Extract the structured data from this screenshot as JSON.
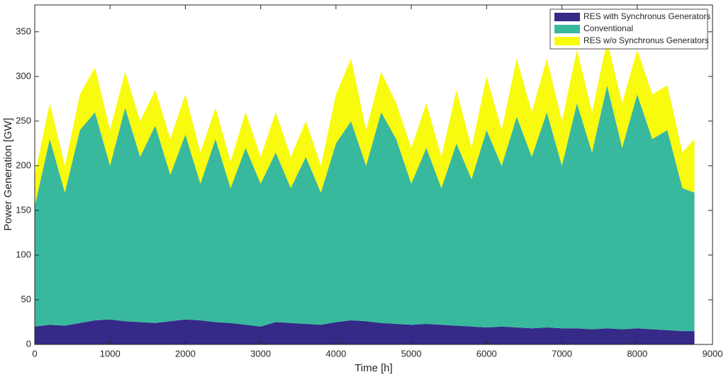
{
  "chart_data": {
    "type": "stacked_area",
    "x_label": "Time [h]",
    "y_label": "Power Generation [GW]",
    "x": [
      0,
      200,
      400,
      600,
      800,
      1000,
      1200,
      1400,
      1600,
      1800,
      2000,
      2200,
      2400,
      2600,
      2800,
      3000,
      3200,
      3400,
      3600,
      3800,
      4000,
      4200,
      4400,
      4600,
      4800,
      5000,
      5200,
      5400,
      5600,
      5800,
      6000,
      6200,
      6400,
      6600,
      6800,
      7000,
      7200,
      7400,
      7600,
      7800,
      8000,
      8200,
      8400,
      8600,
      8760
    ],
    "series": [
      {
        "name": "RES with Synchronus Generators",
        "color": "#352a87",
        "values": [
          20,
          22,
          21,
          24,
          27,
          28,
          26,
          25,
          24,
          26,
          28,
          27,
          25,
          24,
          22,
          20,
          25,
          24,
          23,
          22,
          25,
          27,
          26,
          24,
          23,
          22,
          23,
          22,
          21,
          20,
          19,
          20,
          19,
          18,
          19,
          18,
          18,
          17,
          18,
          17,
          18,
          17,
          16,
          15,
          15
        ]
      },
      {
        "name": "Conventional",
        "color": "#38b99e",
        "values": [
          135,
          208,
          149,
          216,
          233,
          172,
          239,
          185,
          221,
          164,
          207,
          153,
          205,
          151,
          198,
          160,
          190,
          151,
          187,
          148,
          200,
          223,
          174,
          236,
          207,
          158,
          197,
          153,
          204,
          165,
          221,
          180,
          236,
          192,
          241,
          182,
          252,
          198,
          272,
          203,
          262,
          213,
          224,
          160,
          155
        ]
      },
      {
        "name": "RES w/o Synchronus Generators",
        "color": "#f9fb0e",
        "values": [
          35,
          40,
          30,
          40,
          50,
          40,
          40,
          40,
          40,
          40,
          45,
          35,
          35,
          30,
          40,
          30,
          45,
          35,
          40,
          30,
          55,
          70,
          40,
          45,
          40,
          40,
          50,
          35,
          60,
          35,
          60,
          40,
          65,
          50,
          60,
          50,
          60,
          45,
          50,
          50,
          50,
          50,
          50,
          40,
          60
        ]
      }
    ],
    "xlim": [
      0,
      9000
    ],
    "xticks": [
      0,
      1000,
      2000,
      3000,
      4000,
      5000,
      6000,
      7000,
      8000,
      9000
    ],
    "ylim": [
      0,
      380
    ],
    "yticks": [
      0,
      50,
      100,
      150,
      200,
      250,
      300,
      350
    ],
    "legend": "upper right"
  }
}
